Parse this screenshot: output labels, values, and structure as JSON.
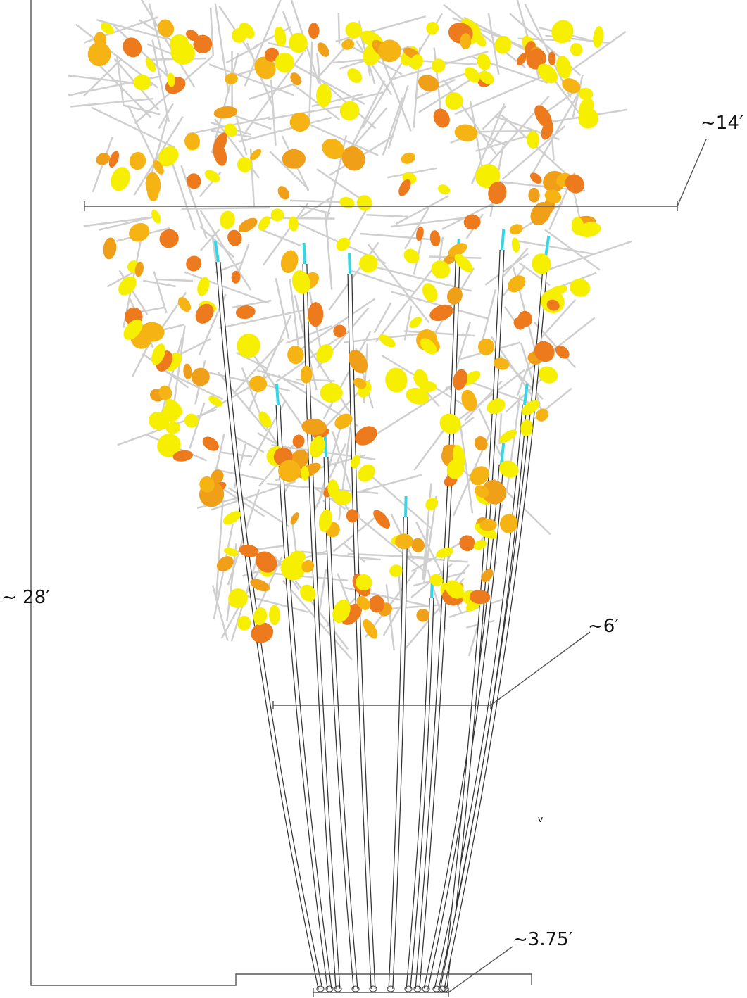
{
  "dimensions": {
    "height": "~ 28′",
    "crown_width": "~14′",
    "mid_width": "~6′",
    "base_width": "~3.75′"
  },
  "marker": "v"
}
